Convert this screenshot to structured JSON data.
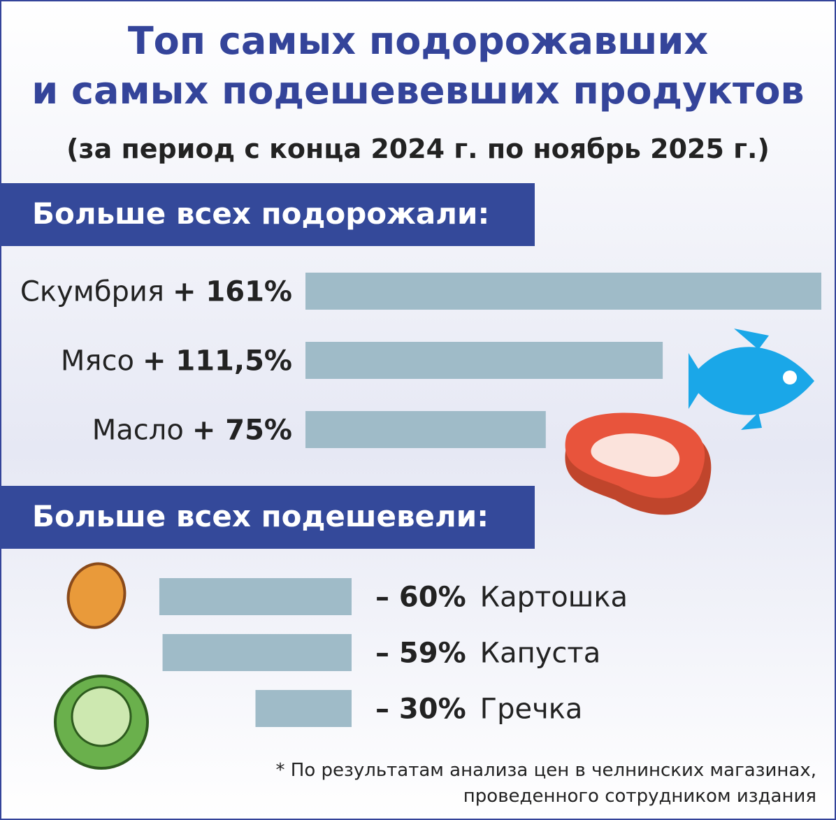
{
  "title_lines": [
    "Топ самых подорожавших",
    "и самых подешевевших продуктов"
  ],
  "subtitle": "(за период с конца 2024 г. по ноябрь 2025 г.)",
  "chart_data": [
    {
      "type": "bar",
      "title": "Больше всех подорожали:",
      "categories": [
        "Скумбрия",
        "Мясо",
        "Масло"
      ],
      "values": [
        161,
        111.5,
        75
      ],
      "value_labels": [
        "+ 161%",
        "+ 111,5%",
        "+ 75%"
      ],
      "color": "#9fbbc8"
    },
    {
      "type": "bar",
      "title": "Больше всех подешевели:",
      "categories": [
        "Картошка",
        "Капуста",
        "Гречка"
      ],
      "values": [
        -60,
        -59,
        -30
      ],
      "value_labels": [
        "– 60%",
        "– 59%",
        "– 30%"
      ],
      "color": "#9fbbc8"
    }
  ],
  "footnote_lines": [
    "* По результатам анализа цен в челнинских магазинах,",
    "проведенного сотрудником издания"
  ]
}
